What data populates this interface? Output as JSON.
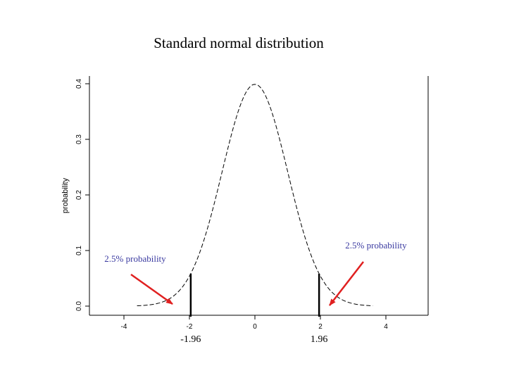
{
  "chart_data": {
    "type": "line",
    "title": "Standard normal distribution",
    "ylabel": "probability",
    "xlabel": "",
    "xlim": [
      -5,
      5.3
    ],
    "ylim": [
      0,
      0.4
    ],
    "x_ticks": [
      "-4",
      "-2",
      "0",
      "2",
      "4"
    ],
    "x_tick_values": [
      -4,
      -2,
      0,
      2,
      4
    ],
    "y_ticks": [
      "0.0",
      "0.1",
      "0.2",
      "0.3",
      "0.4"
    ],
    "y_tick_values": [
      0,
      0.1,
      0.2,
      0.3,
      0.4
    ],
    "series": [
      {
        "x_range": [
          -3.6,
          3.6
        ],
        "function": "standard normal density",
        "style": "dashed",
        "color": "#000000"
      }
    ],
    "critical_values": [
      {
        "x": -1.96,
        "label": "-1.96"
      },
      {
        "x": 1.96,
        "label": "1.96"
      }
    ],
    "annotations": [
      {
        "text": "2.5% probability",
        "side": "left",
        "color": "#3a3aa0",
        "arrow_color": "#e02020"
      },
      {
        "text": "2.5% probability",
        "side": "right",
        "color": "#3a3aa0",
        "arrow_color": "#e02020"
      }
    ],
    "grid": false
  }
}
